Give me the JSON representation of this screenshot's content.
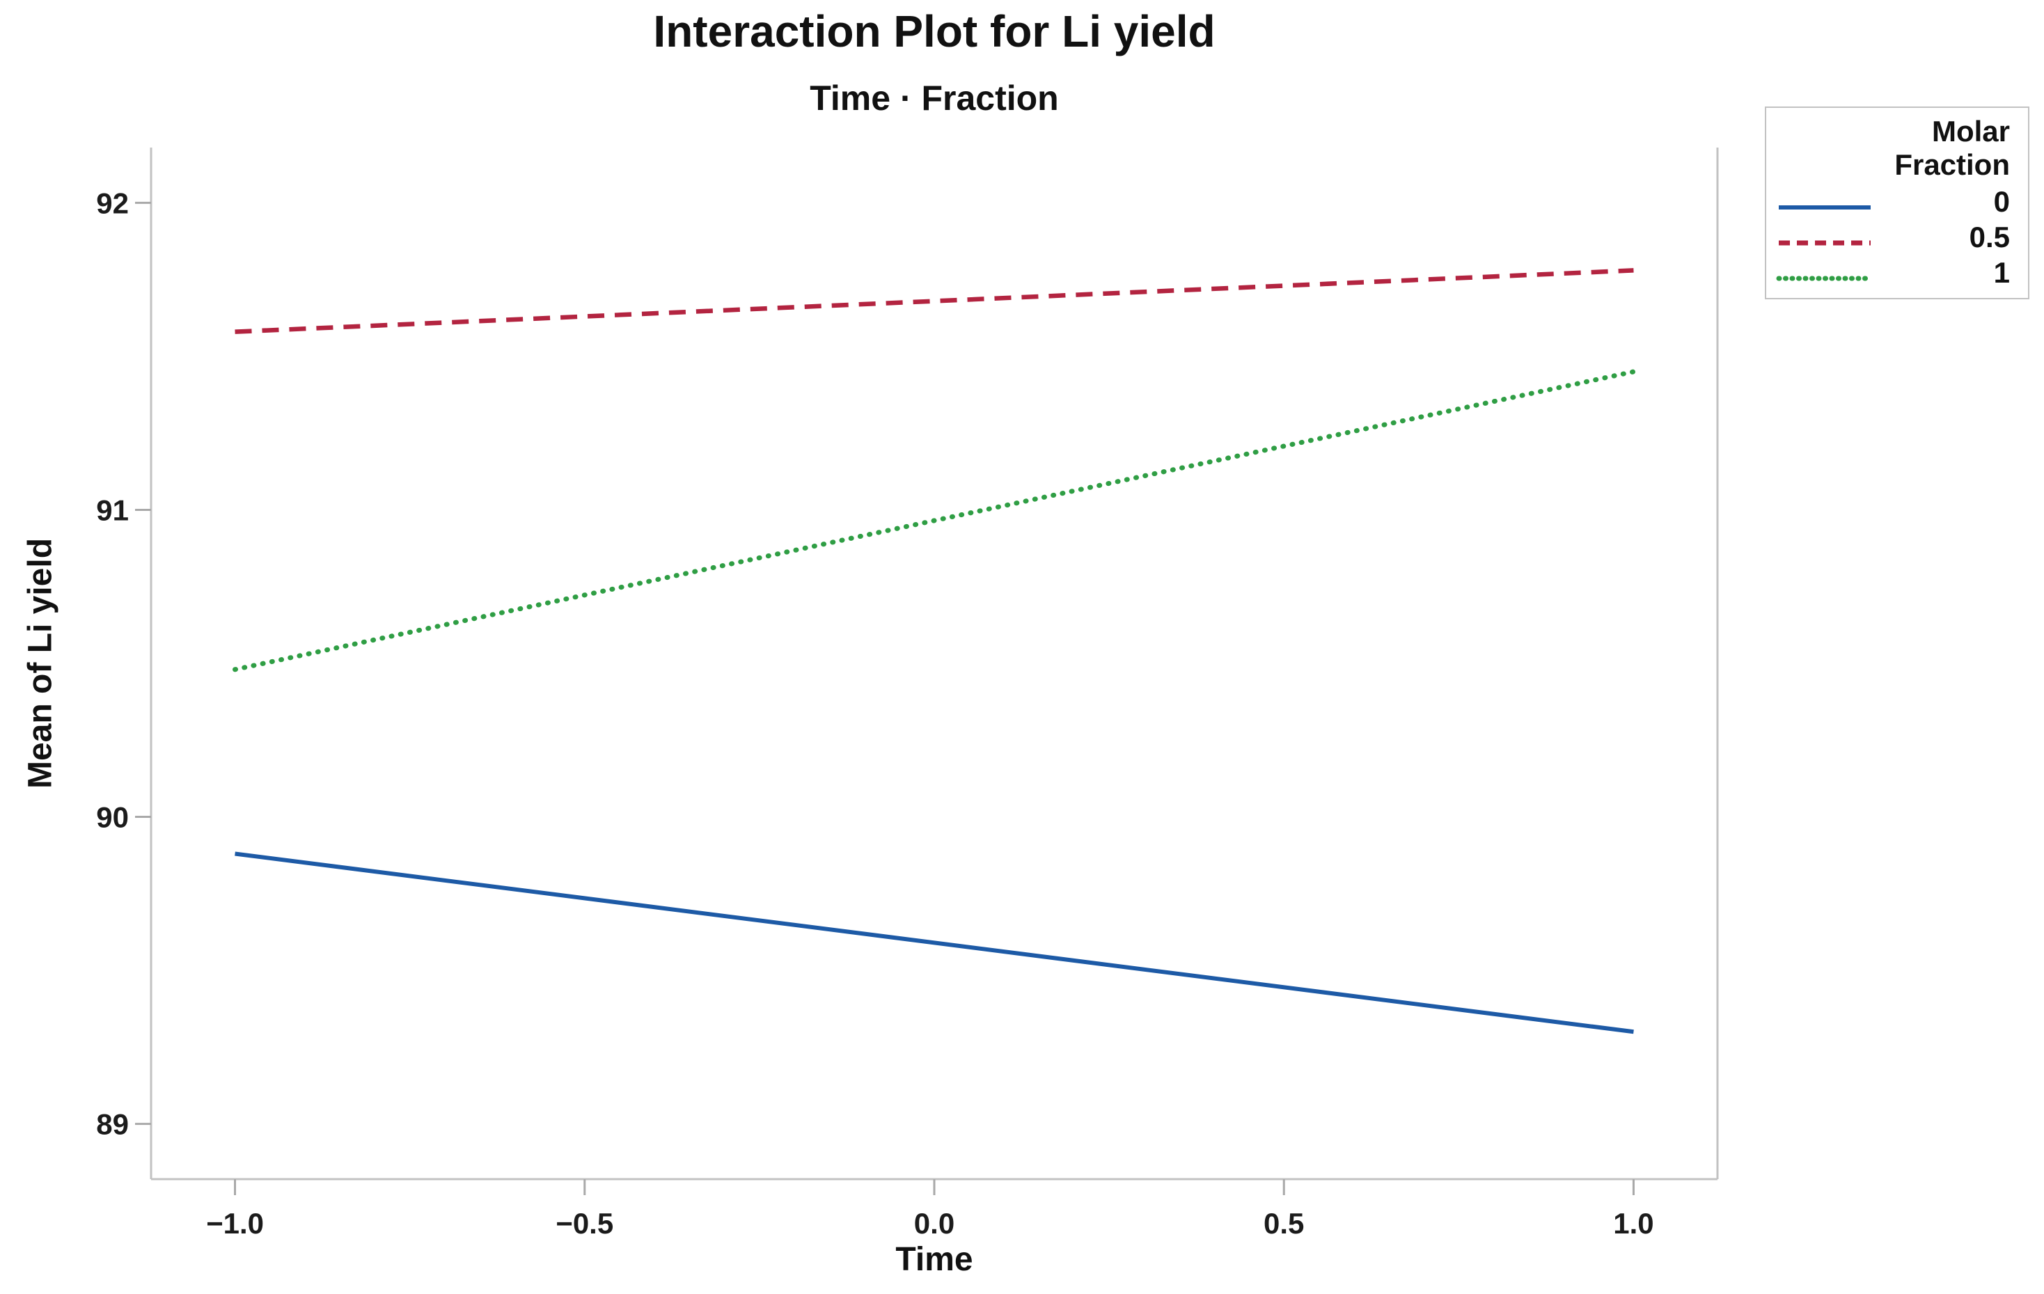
{
  "figure": {
    "background": "#ffffff"
  },
  "chart_data": {
    "type": "line",
    "title": "Interaction Plot for Li yield",
    "subtitle": "Time · Fraction",
    "xlabel": "Time",
    "ylabel": "Mean of Li yield",
    "x": [
      -1,
      1
    ],
    "series": [
      {
        "name": "0",
        "values": [
          89.88,
          89.3
        ],
        "color": "#1d5aa6",
        "dash": "solid"
      },
      {
        "name": "0.5",
        "values": [
          91.58,
          91.78
        ],
        "color": "#b32440",
        "dash": "dashed"
      },
      {
        "name": "1",
        "values": [
          90.48,
          91.45
        ],
        "color": "#2f9e44",
        "dash": "dotted"
      }
    ],
    "x_ticks": [
      -1.0,
      -0.5,
      0.0,
      0.5,
      1.0
    ],
    "x_tick_labels": [
      "-1.0",
      "-0.5",
      "0.0",
      "0.5",
      "1.0"
    ],
    "y_ticks": [
      89,
      90,
      91,
      92
    ],
    "y_tick_labels": [
      "89",
      "90",
      "91",
      "92"
    ],
    "xlim": [
      -1.12,
      1.12
    ],
    "ylim": [
      88.82,
      92.18
    ],
    "grid": false,
    "legend": {
      "position": "top-right",
      "title_lines": [
        "Molar",
        "Fraction"
      ],
      "entries": [
        "0",
        "0.5",
        "1"
      ]
    },
    "axis_color": "#c2c2c2",
    "tick_color": "#a9a9a9",
    "text_color": "#1b1b1b"
  }
}
